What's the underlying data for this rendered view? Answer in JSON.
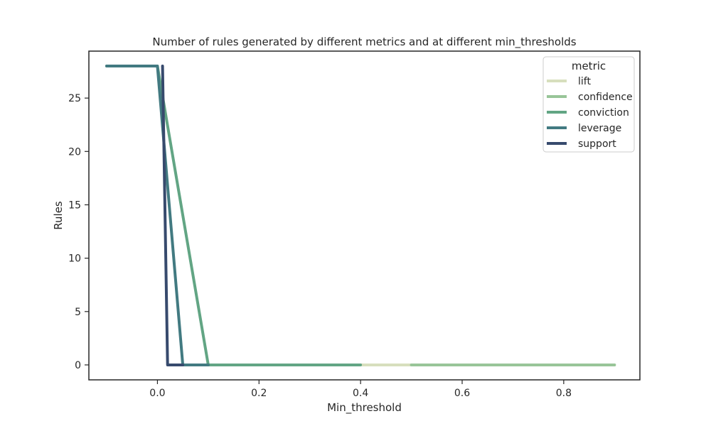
{
  "chart_data": {
    "type": "line",
    "title": "Number of rules generated by different metrics and at different min_thresholds",
    "xlabel": "Min_threshold",
    "ylabel": "Rules",
    "xlim": [
      -0.135,
      0.95
    ],
    "ylim": [
      -1.4,
      29.4
    ],
    "xticks": [
      0.0,
      0.2,
      0.4,
      0.6,
      0.8
    ],
    "xtick_labels": [
      "0.0",
      "0.2",
      "0.4",
      "0.6",
      "0.8"
    ],
    "yticks": [
      0,
      5,
      10,
      15,
      20,
      25
    ],
    "ytick_labels": [
      "0",
      "5",
      "10",
      "15",
      "20",
      "25"
    ],
    "grid": false,
    "legend": {
      "title": "metric",
      "position": "top-right"
    },
    "series": [
      {
        "name": "lift",
        "color": "#d7dfbd",
        "x": [
          0.4,
          0.5,
          0.6,
          0.7,
          0.8,
          0.9
        ],
        "y": [
          0,
          0,
          0,
          0,
          0,
          0
        ]
      },
      {
        "name": "confidence",
        "color": "#98c598",
        "x": [
          0.5,
          0.6,
          0.7,
          0.8,
          0.9
        ],
        "y": [
          0,
          0,
          0,
          0,
          0
        ]
      },
      {
        "name": "conviction",
        "color": "#62a584",
        "x": [
          -0.1,
          0.0,
          0.1,
          0.2,
          0.3,
          0.4
        ],
        "y": [
          28,
          28,
          0,
          0,
          0,
          0
        ]
      },
      {
        "name": "leverage",
        "color": "#427a81",
        "x": [
          -0.1,
          -0.05,
          0.0,
          0.05,
          0.1
        ],
        "y": [
          28,
          28,
          28,
          0,
          0
        ]
      },
      {
        "name": "support",
        "color": "#374a6d",
        "x": [
          0.01,
          0.02,
          0.05
        ],
        "y": [
          28,
          0,
          0
        ]
      }
    ]
  }
}
